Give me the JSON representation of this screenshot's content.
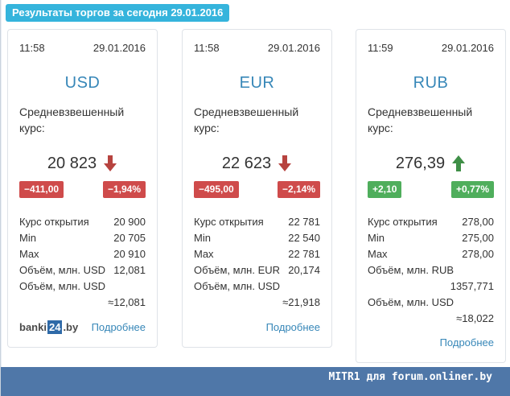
{
  "header": {
    "title": "Результаты торгов за сегодня 29.01.2016"
  },
  "cards": [
    {
      "time": "11:58",
      "date": "29.01.2016",
      "currency": "USD",
      "label": "Средневзвешенный курс:",
      "rate": "20 823",
      "direction": "down",
      "change_abs": "−411,00",
      "change_pct": "−1,94%",
      "open_label": "Курс открытия",
      "open_value": "20 900",
      "min_label": "Min",
      "min_value": "20 705",
      "max_label": "Max",
      "max_value": "20 910",
      "vol_cur_label": "Объём, млн. USD",
      "vol_cur_value": "12,081",
      "vol_usd_label": "Объём, млн. USD",
      "vol_usd_value": "≈12,081",
      "more_label": "Подробнее"
    },
    {
      "time": "11:58",
      "date": "29.01.2016",
      "currency": "EUR",
      "label": "Средневзвешенный курс:",
      "rate": "22 623",
      "direction": "down",
      "change_abs": "−495,00",
      "change_pct": "−2,14%",
      "open_label": "Курс открытия",
      "open_value": "22 781",
      "min_label": "Min",
      "min_value": "22 540",
      "max_label": "Max",
      "max_value": "22 781",
      "vol_cur_label": "Объём, млн. EUR",
      "vol_cur_value": "20,174",
      "vol_usd_label": "Объём, млн. USD",
      "vol_usd_value": "≈21,918",
      "more_label": "Подробнее"
    },
    {
      "time": "11:59",
      "date": "29.01.2016",
      "currency": "RUB",
      "label": "Средневзвешенный курс:",
      "rate": "276,39",
      "direction": "up",
      "change_abs": "+2,10",
      "change_pct": "+0,77%",
      "open_label": "Курс открытия",
      "open_value": "278,00",
      "min_label": "Min",
      "min_value": "275,00",
      "max_label": "Max",
      "max_value": "278,00",
      "vol_cur_label": "Объём, млн. RUB",
      "vol_cur_value": "1357,771",
      "vol_usd_label": "Объём, млн. USD",
      "vol_usd_value": "≈18,022",
      "more_label": "Подробнее"
    }
  ],
  "logo": {
    "prefix": "banki",
    "box": "24",
    "suffix": ".by"
  },
  "watermark": "MITR1 для forum.onliner.by",
  "colors": {
    "accent": "#35b4dc",
    "link": "#3787b8",
    "down": "#cf4b4b",
    "up": "#4fae5c",
    "bottom_bar": "#4f77a8"
  },
  "icons": {
    "down": "arrow-down-icon",
    "up": "arrow-up-icon"
  }
}
